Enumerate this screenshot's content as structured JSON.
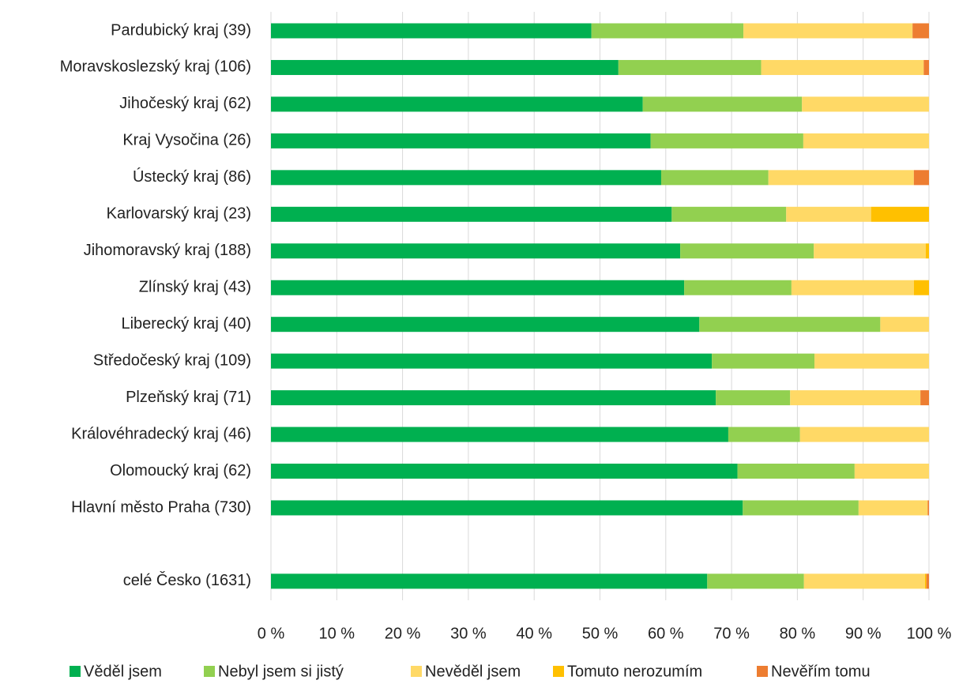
{
  "chart_data": {
    "type": "stacked-barh",
    "categories": [
      "Pardubický kraj (39)",
      "Moravskoslezský kraj (106)",
      "Jihočeský kraj (62)",
      "Kraj Vysočina (26)",
      "Ústecký kraj (86)",
      "Karlovarský kraj (23)",
      "Jihomoravský kraj (188)",
      "Zlínský kraj (43)",
      "Liberecký kraj (40)",
      "Středočeský kraj (109)",
      "Plzeňský kraj (71)",
      "Královéhradecký kraj (46)",
      "Olomoucký kraj (62)",
      "Hlavní město Praha (730)",
      null,
      "celé Česko (1631)"
    ],
    "series": [
      {
        "name": "Věděl jsem",
        "color": "#00b050",
        "values": [
          48.7,
          52.8,
          56.5,
          57.7,
          59.3,
          60.9,
          62.2,
          62.8,
          65.1,
          67.0,
          67.6,
          69.5,
          70.9,
          71.7,
          null,
          66.3
        ]
      },
      {
        "name": "Nebyl jsem si jistý",
        "color": "#92d050",
        "values": [
          23.1,
          21.7,
          24.2,
          23.2,
          16.3,
          17.4,
          20.3,
          16.3,
          27.5,
          15.6,
          11.3,
          10.9,
          17.8,
          17.6,
          null,
          14.7
        ]
      },
      {
        "name": "Nevěděl jsem",
        "color": "#ffd966",
        "values": [
          25.7,
          24.7,
          19.3,
          19.1,
          22.1,
          12.9,
          17.0,
          18.6,
          7.4,
          17.4,
          19.8,
          19.6,
          11.3,
          10.5,
          null,
          18.4
        ]
      },
      {
        "name": "Tomuto nerozumím",
        "color": "#ffc000",
        "values": [
          0,
          0,
          0,
          0,
          0,
          8.8,
          0.5,
          2.3,
          0,
          0,
          0,
          0,
          0,
          0,
          null,
          0.2
        ]
      },
      {
        "name": "Nevěřím tomu",
        "color": "#ed7d31",
        "values": [
          2.5,
          0.8,
          0,
          0,
          2.3,
          0,
          0,
          0,
          0,
          0,
          1.3,
          0,
          0,
          0.2,
          null,
          0.4
        ]
      }
    ],
    "xlim": [
      0,
      100
    ],
    "xticks": [
      {
        "value": 0,
        "label": "0 %"
      },
      {
        "value": 10,
        "label": "10 %"
      },
      {
        "value": 20,
        "label": "20 %"
      },
      {
        "value": 30,
        "label": "30 %"
      },
      {
        "value": 40,
        "label": "40 %"
      },
      {
        "value": 50,
        "label": "50 %"
      },
      {
        "value": 60,
        "label": "60 %"
      },
      {
        "value": 70,
        "label": "70 %"
      },
      {
        "value": 80,
        "label": "80 %"
      },
      {
        "value": 90,
        "label": "90 %"
      },
      {
        "value": 100,
        "label": "100 %"
      }
    ],
    "grid": true,
    "legend": "bottom"
  }
}
